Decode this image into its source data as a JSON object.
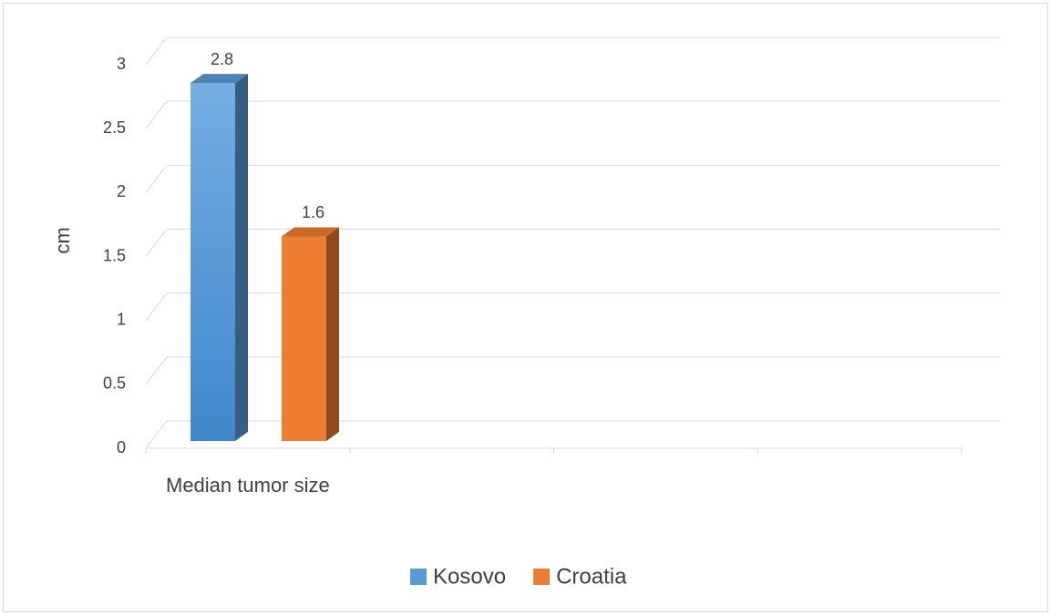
{
  "chart_data": {
    "type": "bar3d",
    "y_label": "cm",
    "categories": [
      "Median tumor size",
      null,
      null,
      null
    ],
    "series": [
      {
        "name": "Kosovo",
        "color": "#5b9bd5",
        "values": [
          2.8,
          null,
          null,
          null
        ]
      },
      {
        "name": "Croatia",
        "color": "#ed7d31",
        "values": [
          1.6,
          null,
          null,
          null
        ]
      }
    ],
    "ylim": [
      0,
      3
    ],
    "yticks": [
      0,
      0.5,
      1,
      1.5,
      2,
      2.5,
      3
    ],
    "grid": true,
    "legend": "bottom"
  }
}
